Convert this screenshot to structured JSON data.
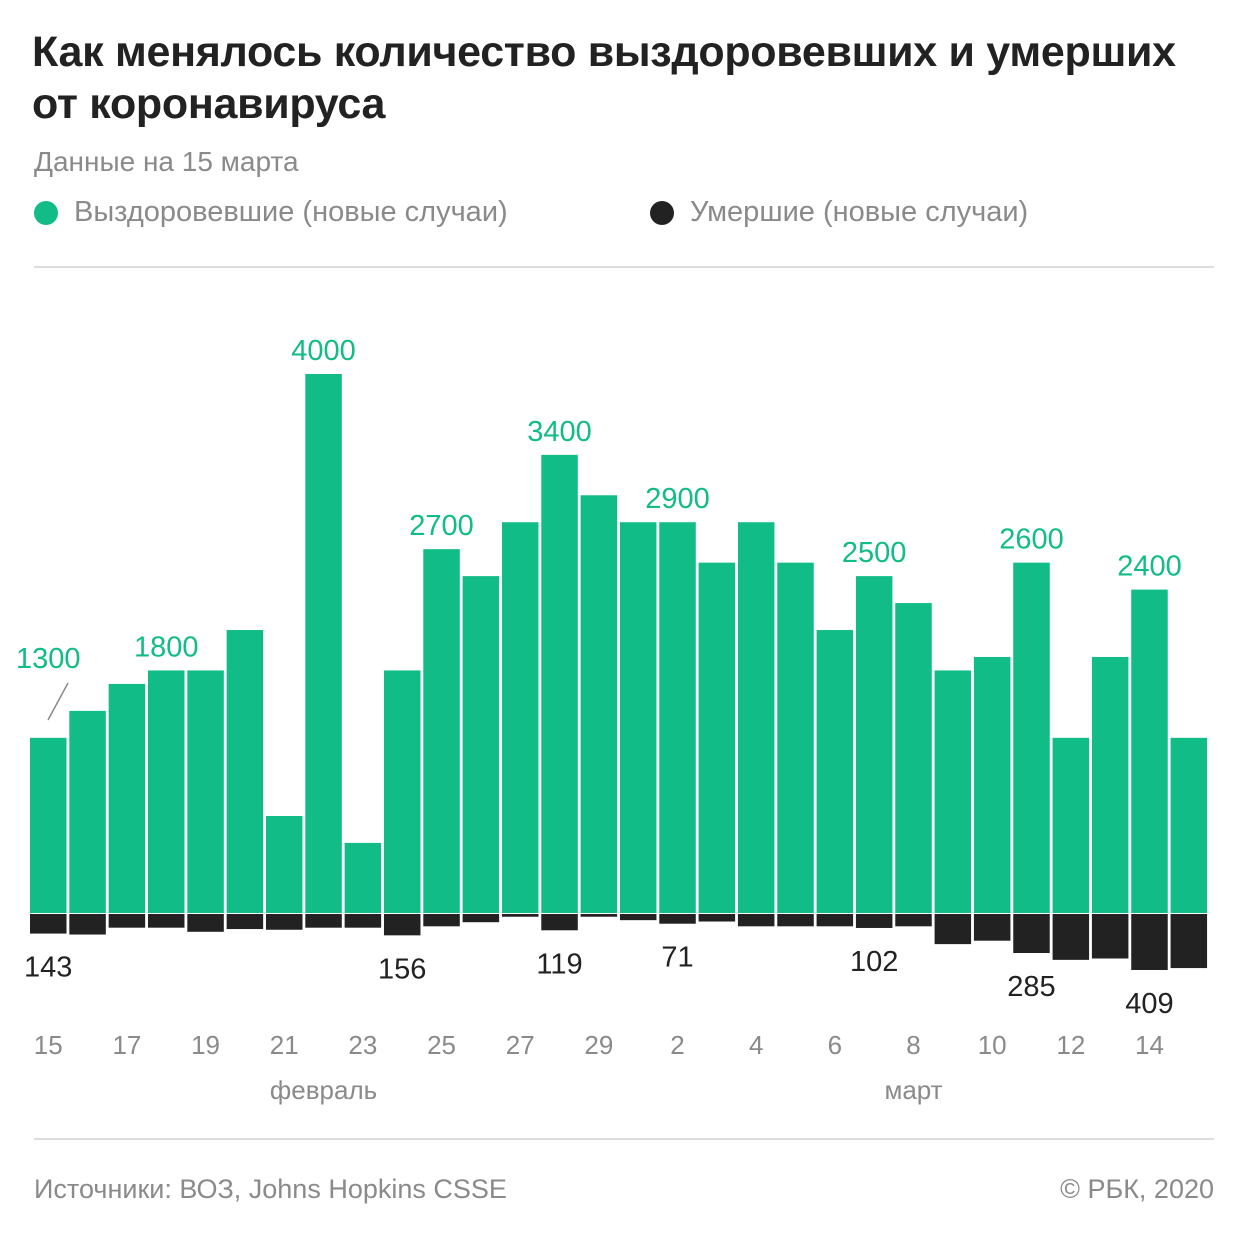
{
  "header": {
    "title": "Как менялось количество выздоровевших и умерших от коронавируса",
    "subtitle": "Данные на 15 марта"
  },
  "legend": {
    "recovered_label": "Выздоровевшие (новые случаи)",
    "deaths_label": "Умершие (новые случаи)"
  },
  "colors": {
    "recovered": "#12bc86",
    "deaths": "#222222",
    "axis_text": "#8a8a8a"
  },
  "footer": {
    "source": "Источники: ВОЗ, Johns Hopkins CSSE",
    "copyright": "© РБК, 2020"
  },
  "chart_data": {
    "type": "bar",
    "categories": [
      "15",
      "16",
      "17",
      "18",
      "19",
      "20",
      "21",
      "22",
      "23",
      "24",
      "25",
      "26",
      "27",
      "28",
      "29",
      "1",
      "2",
      "3",
      "4",
      "5",
      "6",
      "7",
      "8",
      "9",
      "10",
      "11",
      "12",
      "13",
      "14",
      "15"
    ],
    "x_tick_labels": [
      "15",
      "17",
      "19",
      "21",
      "23",
      "25",
      "27",
      "29",
      "2",
      "4",
      "6",
      "8",
      "10",
      "12",
      "14"
    ],
    "month_labels": [
      "февраль",
      "март"
    ],
    "series": [
      {
        "name": "Выздоровевшие (новые случаи)",
        "values": [
          1300,
          1500,
          1700,
          1800,
          1800,
          2100,
          720,
          4000,
          520,
          1800,
          2700,
          2500,
          2900,
          3400,
          3100,
          2900,
          2900,
          2600,
          2900,
          2600,
          2100,
          2500,
          2300,
          1800,
          1900,
          2600,
          1300,
          1900,
          2400,
          1300
        ]
      },
      {
        "name": "Умершие (новые случаи)",
        "values": [
          143,
          150,
          100,
          100,
          130,
          110,
          115,
          100,
          100,
          156,
          90,
          60,
          20,
          119,
          20,
          45,
          71,
          55,
          90,
          90,
          90,
          102,
          90,
          220,
          195,
          285,
          335,
          325,
          409,
          395
        ]
      }
    ],
    "value_labels": {
      "recovered": [
        {
          "index": 0,
          "text": "1300"
        },
        {
          "index": 3,
          "text": "1800"
        },
        {
          "index": 7,
          "text": "4000"
        },
        {
          "index": 10,
          "text": "2700"
        },
        {
          "index": 13,
          "text": "3400"
        },
        {
          "index": 16,
          "text": "2900"
        },
        {
          "index": 21,
          "text": "2500"
        },
        {
          "index": 25,
          "text": "2600"
        },
        {
          "index": 28,
          "text": "2400"
        }
      ],
      "deaths": [
        {
          "index": 0,
          "text": "143"
        },
        {
          "index": 9,
          "text": "156"
        },
        {
          "index": 13,
          "text": "119"
        },
        {
          "index": 16,
          "text": "71"
        },
        {
          "index": 21,
          "text": "102"
        },
        {
          "index": 25,
          "text": "285"
        },
        {
          "index": 28,
          "text": "409"
        }
      ]
    },
    "ylim": [
      -409,
      4000
    ],
    "grid": false,
    "legend_position": "top-left"
  }
}
